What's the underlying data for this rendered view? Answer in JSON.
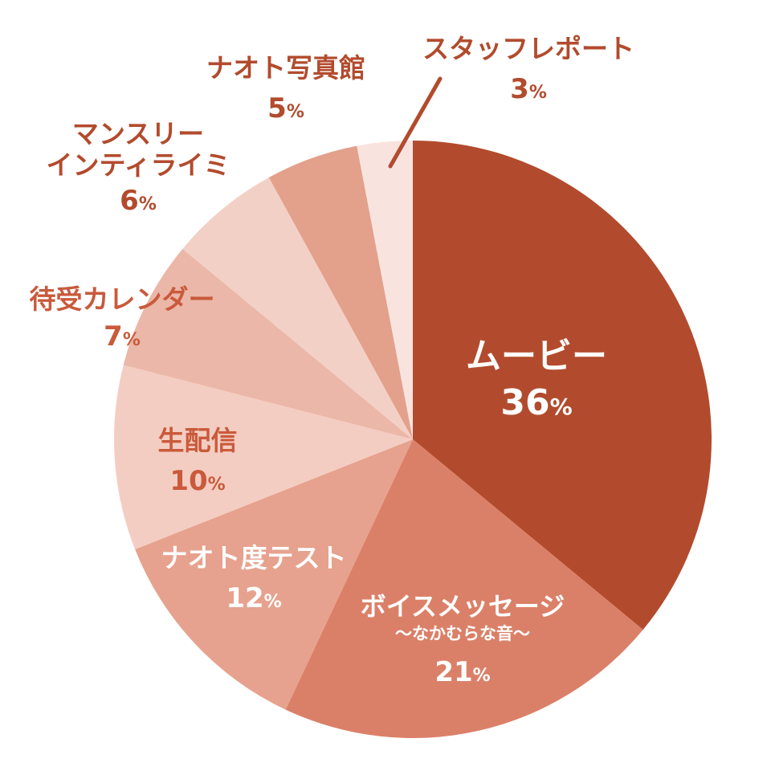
{
  "chart_data": {
    "type": "pie",
    "start_angle_deg": 0,
    "direction": "clockwise",
    "slices": [
      {
        "name_lines": [
          "ムービー"
        ],
        "value": 36,
        "value_text": "36",
        "unit": "%",
        "color": "#b24b2d",
        "label_color": "#ffffff"
      },
      {
        "name_lines": [
          "ボイスメッセージ",
          "〜なかむらな音〜"
        ],
        "value": 21,
        "value_text": "21",
        "unit": "%",
        "color": "#db8068",
        "label_color": "#ffffff"
      },
      {
        "name_lines": [
          "ナオト度テスト"
        ],
        "value": 12,
        "value_text": "12",
        "unit": "%",
        "color": "#e6a28e",
        "label_color": "#ffffff"
      },
      {
        "name_lines": [
          "生配信"
        ],
        "value": 10,
        "value_text": "10",
        "unit": "%",
        "color": "#f4cdc2",
        "label_color": "#c95a3b"
      },
      {
        "name_lines": [
          "待受カレンダー"
        ],
        "value": 7,
        "value_text": "7",
        "unit": "%",
        "color": "#ebb7a8",
        "label_color": "#c95a3b"
      },
      {
        "name_lines": [
          "マンスリー",
          "インティライミ"
        ],
        "value": 6,
        "value_text": "6",
        "unit": "%",
        "color": "#f3d0c6",
        "label_color": "#b24b2d"
      },
      {
        "name_lines": [
          "ナオト写真館"
        ],
        "value": 5,
        "value_text": "5",
        "unit": "%",
        "color": "#e3a08b",
        "label_color": "#b24b2d"
      },
      {
        "name_lines": [
          "スタッフレポート"
        ],
        "value": 3,
        "value_text": "3",
        "unit": "%",
        "color": "#f8e3df",
        "label_color": "#b24b2d"
      }
    ],
    "leader_line_color": "#b24b2d"
  }
}
